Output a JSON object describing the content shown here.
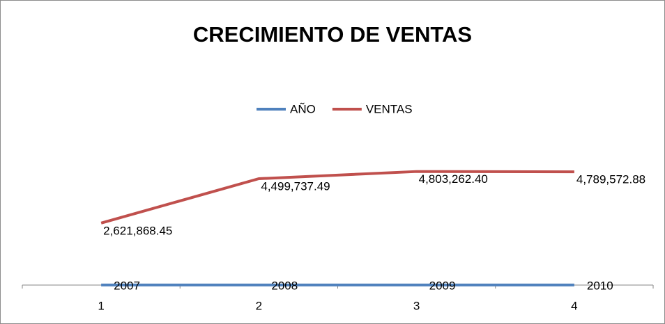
{
  "chart_data": {
    "type": "line",
    "title": "CRECIMIENTO DE VENTAS",
    "categories": [
      "1",
      "2",
      "3",
      "4"
    ],
    "series": [
      {
        "name": "AÑO",
        "color": "#4f81bd",
        "values": [
          2007,
          2008,
          2009,
          2010
        ]
      },
      {
        "name": "VENTAS",
        "color": "#c0504d",
        "values": [
          2621868.45,
          4499737.49,
          4803262.4,
          4789572.88
        ],
        "value_labels": [
          "2,621,868.45",
          "4,499,737.49",
          "4,803,262.40",
          "4,789,572.88"
        ]
      }
    ],
    "ylim": [
      0,
      6000000
    ],
    "legend": "top"
  }
}
